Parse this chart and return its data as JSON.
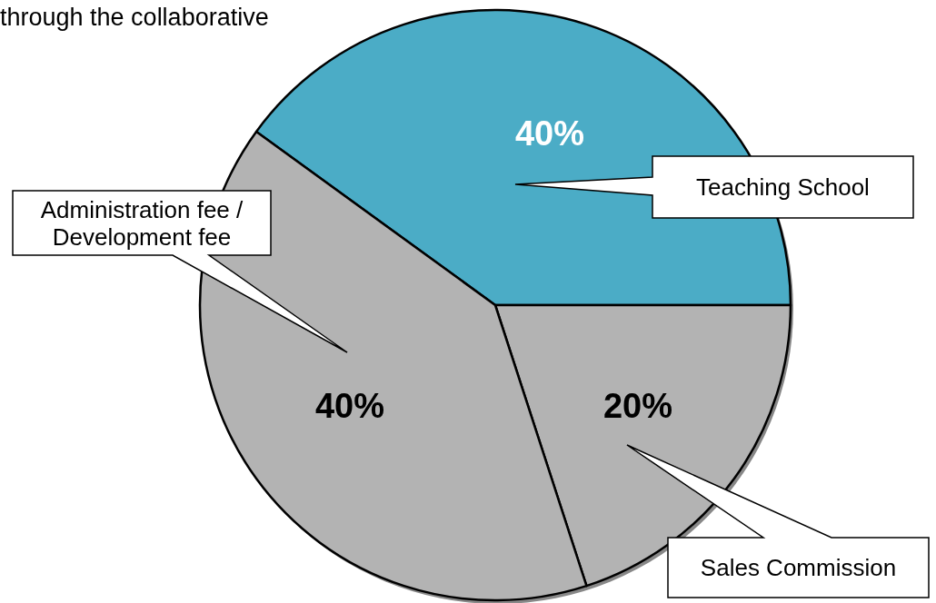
{
  "chart_data": {
    "type": "pie",
    "title": "through the collaborative",
    "categories": [
      "Teaching School",
      "Sales Commission",
      "Administration fee / Development fee"
    ],
    "values": [
      40,
      20,
      40
    ],
    "colors": [
      "#4bacc6",
      "#b3b3b3",
      "#b3b3b3"
    ],
    "value_labels": [
      "40%",
      "20%",
      "40%"
    ],
    "legend": false
  }
}
